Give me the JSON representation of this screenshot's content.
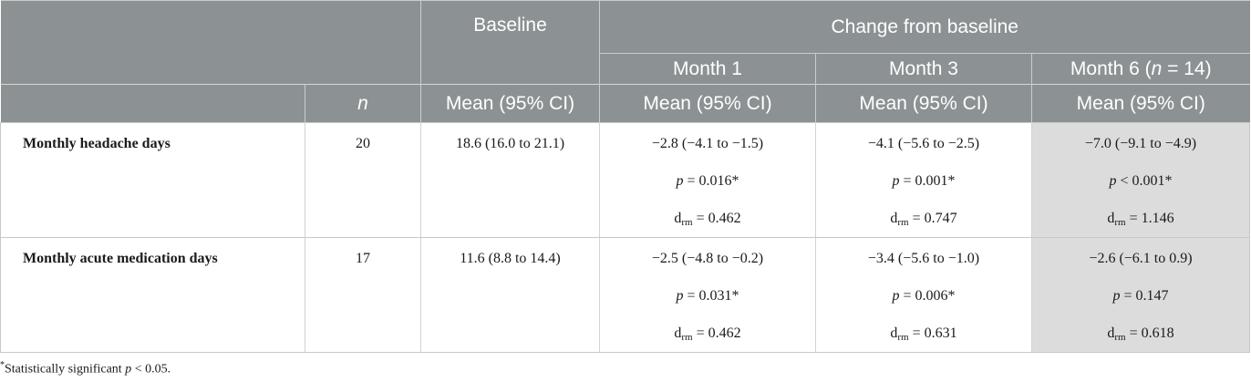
{
  "header": {
    "baseline": "Baseline",
    "change_from_baseline": "Change from baseline",
    "month1": "Month 1",
    "month3": "Month 3",
    "month6_prefix": "Month 6 (",
    "month6_n": "n",
    "month6_suffix": " = 14)",
    "n_label": "n",
    "mean_ci": "Mean (95% CI)"
  },
  "rows": [
    {
      "label": "Monthly headache days",
      "n": "20",
      "baseline": "18.6 (16.0 to 21.1)",
      "month1": {
        "mean": "−2.8 (−4.1 to −1.5)",
        "p": " = 0.016*",
        "d": " = 0.462"
      },
      "month3": {
        "mean": "−4.1 (−5.6 to −2.5)",
        "p": " = 0.001*",
        "d": " = 0.747"
      },
      "month6": {
        "mean": "−7.0 (−9.1 to −4.9)",
        "p": " < 0.001*",
        "d": " = 1.146"
      }
    },
    {
      "label": "Monthly acute medication days",
      "n": "17",
      "baseline": "11.6 (8.8 to 14.4)",
      "month1": {
        "mean": "−2.5 (−4.8 to −0.2)",
        "p": " = 0.031*",
        "d": " = 0.462"
      },
      "month3": {
        "mean": "−3.4 (−5.6 to −1.0)",
        "p": " = 0.006*",
        "d": " = 0.631"
      },
      "month6": {
        "mean": "−2.6 (−6.1 to 0.9)",
        "p": " = 0.147",
        "d": " = 0.618"
      }
    }
  ],
  "symbols": {
    "p": "p",
    "d": "d",
    "rm": "rm"
  },
  "footnote": {
    "marker": "*",
    "text": "Statistically significant ",
    "p": "p",
    "threshold": " < 0.05."
  }
}
